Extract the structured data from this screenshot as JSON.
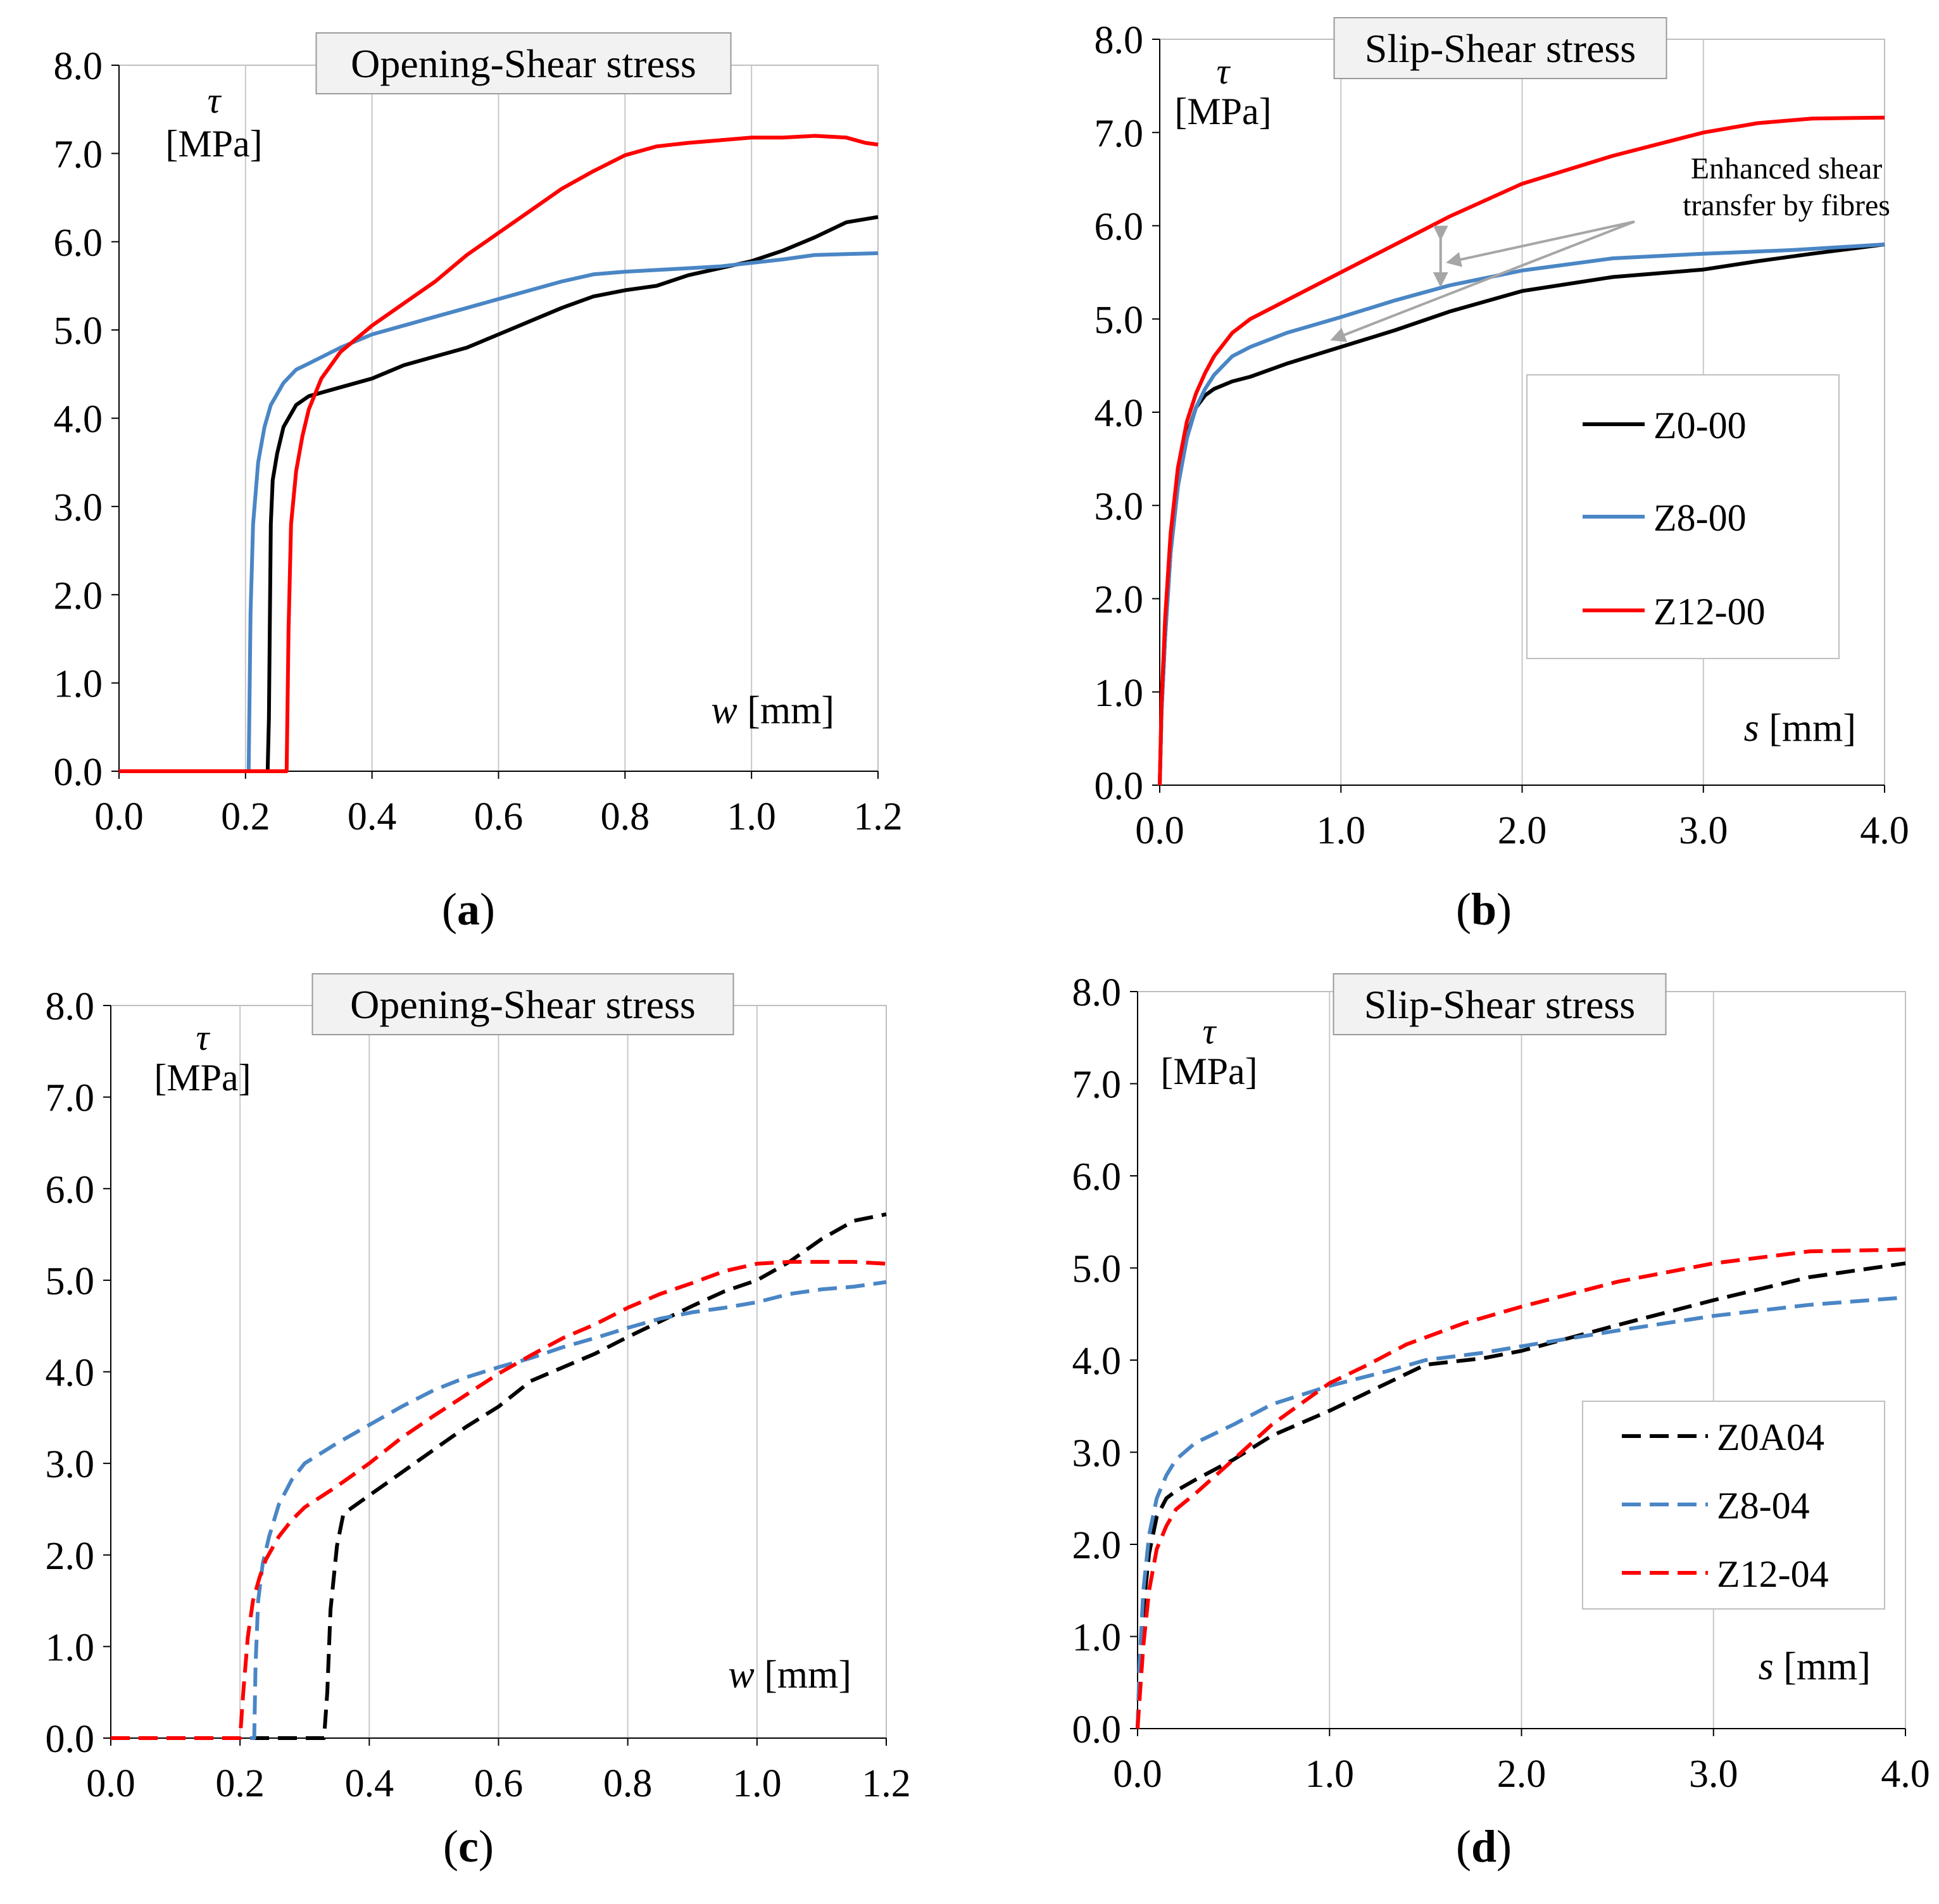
{
  "series_styles": {
    "Z0-00": {
      "color": "#000000",
      "dash": "solid"
    },
    "Z8-00": {
      "color": "#4a86c5",
      "dash": "solid"
    },
    "Z12-00": {
      "color": "#ff0000",
      "dash": "solid"
    },
    "Z0A04": {
      "color": "#000000",
      "dash": "dashed"
    },
    "Z8-04": {
      "color": "#4a86c5",
      "dash": "dashed"
    },
    "Z12-04": {
      "color": "#ff0000",
      "dash": "dashed"
    }
  },
  "chart_data": [
    {
      "id": "a",
      "type": "line",
      "title": "Opening-Shear stress",
      "caption": "(a)",
      "ylabel_symbol": "τ",
      "ylabel_unit": "[MPa]",
      "xlabel_symbol": "w",
      "xlabel_unit": "[mm]",
      "xlim": [
        0.0,
        1.2
      ],
      "ylim": [
        0.0,
        8.0
      ],
      "xticks": [
        "0.0",
        "0.2",
        "0.4",
        "0.6",
        "0.8",
        "1.0",
        "1.2"
      ],
      "yticks": [
        "0.0",
        "1.0",
        "2.0",
        "3.0",
        "4.0",
        "5.0",
        "6.0",
        "7.0",
        "8.0"
      ],
      "grid": "vertical",
      "series": [
        {
          "name": "Z0-00",
          "x": [
            0.0,
            0.235,
            0.237,
            0.24,
            0.243,
            0.25,
            0.26,
            0.28,
            0.3,
            0.35,
            0.4,
            0.45,
            0.5,
            0.55,
            0.6,
            0.65,
            0.7,
            0.75,
            0.8,
            0.85,
            0.9,
            0.95,
            1.0,
            1.05,
            1.1,
            1.15,
            1.2
          ],
          "y": [
            0.0,
            0.0,
            0.6,
            2.8,
            3.3,
            3.6,
            3.9,
            4.15,
            4.25,
            4.35,
            4.45,
            4.6,
            4.7,
            4.8,
            4.95,
            5.1,
            5.25,
            5.38,
            5.45,
            5.5,
            5.62,
            5.7,
            5.78,
            5.9,
            6.05,
            6.22,
            6.28
          ]
        },
        {
          "name": "Z8-00",
          "x": [
            0.0,
            0.205,
            0.208,
            0.212,
            0.22,
            0.23,
            0.24,
            0.26,
            0.28,
            0.3,
            0.35,
            0.4,
            0.45,
            0.5,
            0.55,
            0.6,
            0.65,
            0.7,
            0.75,
            0.8,
            0.85,
            0.9,
            0.95,
            1.0,
            1.05,
            1.1,
            1.15,
            1.2
          ],
          "y": [
            0.0,
            0.0,
            1.8,
            2.8,
            3.5,
            3.9,
            4.15,
            4.4,
            4.55,
            4.62,
            4.8,
            4.95,
            5.05,
            5.15,
            5.25,
            5.35,
            5.45,
            5.55,
            5.63,
            5.66,
            5.68,
            5.7,
            5.72,
            5.76,
            5.8,
            5.85,
            5.86,
            5.87
          ]
        },
        {
          "name": "Z12-00",
          "x": [
            0.0,
            0.265,
            0.268,
            0.272,
            0.28,
            0.29,
            0.3,
            0.32,
            0.35,
            0.4,
            0.45,
            0.5,
            0.55,
            0.6,
            0.65,
            0.7,
            0.75,
            0.8,
            0.85,
            0.9,
            0.95,
            1.0,
            1.05,
            1.1,
            1.15,
            1.18,
            1.2
          ],
          "y": [
            0.0,
            0.0,
            1.6,
            2.8,
            3.4,
            3.8,
            4.1,
            4.45,
            4.75,
            5.05,
            5.3,
            5.55,
            5.85,
            6.1,
            6.35,
            6.6,
            6.8,
            6.98,
            7.08,
            7.12,
            7.15,
            7.18,
            7.18,
            7.2,
            7.18,
            7.12,
            7.1
          ]
        }
      ]
    },
    {
      "id": "b",
      "type": "line",
      "title": "Slip-Shear stress",
      "caption": "(b)",
      "ylabel_symbol": "τ",
      "ylabel_unit": "[MPa]",
      "xlabel_symbol": "s",
      "xlabel_unit": "[mm]",
      "xlim": [
        0.0,
        4.0
      ],
      "ylim": [
        0.0,
        8.0
      ],
      "xticks": [
        "0.0",
        "1.0",
        "2.0",
        "3.0",
        "4.0"
      ],
      "yticks": [
        "0.0",
        "1.0",
        "2.0",
        "3.0",
        "4.0",
        "5.0",
        "6.0",
        "7.0",
        "8.0"
      ],
      "grid": "vertical",
      "legend": {
        "entries": [
          "Z0-00",
          "Z8-00",
          "Z12-00"
        ],
        "position": "right"
      },
      "annotation": {
        "lines": [
          "Enhanced shear",
          "transfer by fibres"
        ]
      },
      "series": [
        {
          "name": "Z0-00",
          "x": [
            0.0,
            0.01,
            0.03,
            0.06,
            0.1,
            0.15,
            0.2,
            0.25,
            0.3,
            0.4,
            0.5,
            0.7,
            1.0,
            1.3,
            1.6,
            2.0,
            2.5,
            3.0,
            3.3,
            3.6,
            4.0
          ],
          "y": [
            0.0,
            0.8,
            1.6,
            2.5,
            3.2,
            3.75,
            4.05,
            4.18,
            4.25,
            4.33,
            4.38,
            4.52,
            4.7,
            4.88,
            5.08,
            5.3,
            5.45,
            5.53,
            5.62,
            5.7,
            5.8
          ]
        },
        {
          "name": "Z8-00",
          "x": [
            0.0,
            0.01,
            0.03,
            0.06,
            0.1,
            0.15,
            0.2,
            0.25,
            0.3,
            0.4,
            0.5,
            0.7,
            1.0,
            1.3,
            1.6,
            2.0,
            2.5,
            3.0,
            3.5,
            4.0
          ],
          "y": [
            0.0,
            0.8,
            1.6,
            2.5,
            3.2,
            3.72,
            4.05,
            4.25,
            4.4,
            4.6,
            4.7,
            4.85,
            5.02,
            5.2,
            5.36,
            5.52,
            5.65,
            5.7,
            5.74,
            5.8
          ]
        },
        {
          "name": "Z12-00",
          "x": [
            0.0,
            0.01,
            0.03,
            0.06,
            0.1,
            0.15,
            0.2,
            0.25,
            0.3,
            0.4,
            0.5,
            0.7,
            1.0,
            1.3,
            1.6,
            2.0,
            2.5,
            3.0,
            3.3,
            3.6,
            4.0
          ],
          "y": [
            0.0,
            0.9,
            1.8,
            2.7,
            3.4,
            3.9,
            4.2,
            4.42,
            4.6,
            4.85,
            5.0,
            5.2,
            5.5,
            5.8,
            6.1,
            6.45,
            6.75,
            7.0,
            7.1,
            7.15,
            7.16
          ]
        }
      ]
    },
    {
      "id": "c",
      "type": "line",
      "title": "Opening-Shear stress",
      "caption": "(c)",
      "ylabel_symbol": "τ",
      "ylabel_unit": "[MPa]",
      "xlabel_symbol": "w",
      "xlabel_unit": "[mm]",
      "xlim": [
        0.0,
        1.2
      ],
      "ylim": [
        0.0,
        8.0
      ],
      "xticks": [
        "0.0",
        "0.2",
        "0.4",
        "0.6",
        "0.8",
        "1.0",
        "1.2"
      ],
      "yticks": [
        "0.0",
        "1.0",
        "2.0",
        "3.0",
        "4.0",
        "5.0",
        "6.0",
        "7.0",
        "8.0"
      ],
      "grid": "vertical",
      "series": [
        {
          "name": "Z0A04",
          "x": [
            0.0,
            0.33,
            0.335,
            0.34,
            0.35,
            0.36,
            0.38,
            0.4,
            0.45,
            0.5,
            0.55,
            0.6,
            0.65,
            0.7,
            0.75,
            0.8,
            0.85,
            0.9,
            0.95,
            1.0,
            1.05,
            1.1,
            1.15,
            1.2
          ],
          "y": [
            0.0,
            0.0,
            0.5,
            1.4,
            2.1,
            2.45,
            2.55,
            2.65,
            2.9,
            3.15,
            3.4,
            3.62,
            3.9,
            4.05,
            4.2,
            4.38,
            4.55,
            4.72,
            4.88,
            5.0,
            5.2,
            5.45,
            5.65,
            5.72
          ]
        },
        {
          "name": "Z8-04",
          "x": [
            0.0,
            0.222,
            0.224,
            0.228,
            0.235,
            0.245,
            0.26,
            0.28,
            0.3,
            0.35,
            0.4,
            0.45,
            0.5,
            0.55,
            0.6,
            0.65,
            0.7,
            0.75,
            0.8,
            0.85,
            0.9,
            0.95,
            1.0,
            1.05,
            1.1,
            1.15,
            1.2
          ],
          "y": [
            0.0,
            0.0,
            0.8,
            1.5,
            1.9,
            2.2,
            2.55,
            2.82,
            3.0,
            3.22,
            3.42,
            3.62,
            3.8,
            3.94,
            4.05,
            4.15,
            4.27,
            4.37,
            4.48,
            4.58,
            4.65,
            4.7,
            4.76,
            4.85,
            4.9,
            4.93,
            4.98
          ]
        },
        {
          "name": "Z12-04",
          "x": [
            0.0,
            0.2,
            0.205,
            0.212,
            0.22,
            0.23,
            0.24,
            0.26,
            0.28,
            0.3,
            0.35,
            0.4,
            0.45,
            0.5,
            0.55,
            0.6,
            0.65,
            0.7,
            0.75,
            0.8,
            0.85,
            0.9,
            0.95,
            1.0,
            1.05,
            1.1,
            1.15,
            1.2
          ],
          "y": [
            0.0,
            0.0,
            0.5,
            1.1,
            1.5,
            1.75,
            1.95,
            2.2,
            2.38,
            2.52,
            2.75,
            3.0,
            3.28,
            3.52,
            3.75,
            3.98,
            4.18,
            4.37,
            4.52,
            4.7,
            4.85,
            4.97,
            5.1,
            5.18,
            5.2,
            5.2,
            5.2,
            5.18
          ]
        }
      ]
    },
    {
      "id": "d",
      "type": "line",
      "title": "Slip-Shear stress",
      "caption": "(d)",
      "ylabel_symbol": "τ",
      "ylabel_unit": "[MPa]",
      "xlabel_symbol": "s",
      "xlabel_unit": "[mm]",
      "xlim": [
        0.0,
        4.0
      ],
      "ylim": [
        0.0,
        8.0
      ],
      "xticks": [
        "0.0",
        "1.0",
        "2.0",
        "3.0",
        "4.0"
      ],
      "yticks": [
        "0.0",
        "1.0",
        "2.0",
        "3.0",
        "4.0",
        "5.0",
        "6.0",
        "7.0",
        "8.0"
      ],
      "grid": "vertical",
      "legend": {
        "entries": [
          "Z0A04",
          "Z8-04",
          "Z12-04"
        ],
        "position": "right"
      },
      "series": [
        {
          "name": "Z0A04",
          "x": [
            0.0,
            0.01,
            0.03,
            0.06,
            0.1,
            0.15,
            0.2,
            0.3,
            0.5,
            0.7,
            1.0,
            1.3,
            1.5,
            1.8,
            2.0,
            2.5,
            3.0,
            3.5,
            4.0
          ],
          "y": [
            0.0,
            0.6,
            1.3,
            1.9,
            2.3,
            2.5,
            2.58,
            2.7,
            2.92,
            3.18,
            3.45,
            3.75,
            3.95,
            4.02,
            4.1,
            4.38,
            4.65,
            4.9,
            5.05
          ]
        },
        {
          "name": "Z8-04",
          "x": [
            0.0,
            0.01,
            0.03,
            0.06,
            0.1,
            0.15,
            0.2,
            0.3,
            0.5,
            0.7,
            1.0,
            1.3,
            1.5,
            1.8,
            2.0,
            2.5,
            3.0,
            3.5,
            4.0
          ],
          "y": [
            0.0,
            0.7,
            1.5,
            2.1,
            2.5,
            2.75,
            2.92,
            3.1,
            3.3,
            3.52,
            3.72,
            3.88,
            4.0,
            4.08,
            4.15,
            4.32,
            4.48,
            4.6,
            4.68
          ]
        },
        {
          "name": "Z12-04",
          "x": [
            0.0,
            0.01,
            0.03,
            0.06,
            0.1,
            0.15,
            0.2,
            0.3,
            0.5,
            0.7,
            1.0,
            1.2,
            1.4,
            1.7,
            2.0,
            2.5,
            3.0,
            3.5,
            4.0
          ],
          "y": [
            0.0,
            0.3,
            0.9,
            1.5,
            1.95,
            2.2,
            2.38,
            2.55,
            2.92,
            3.3,
            3.75,
            3.95,
            4.17,
            4.4,
            4.58,
            4.85,
            5.05,
            5.18,
            5.2
          ]
        }
      ]
    }
  ]
}
